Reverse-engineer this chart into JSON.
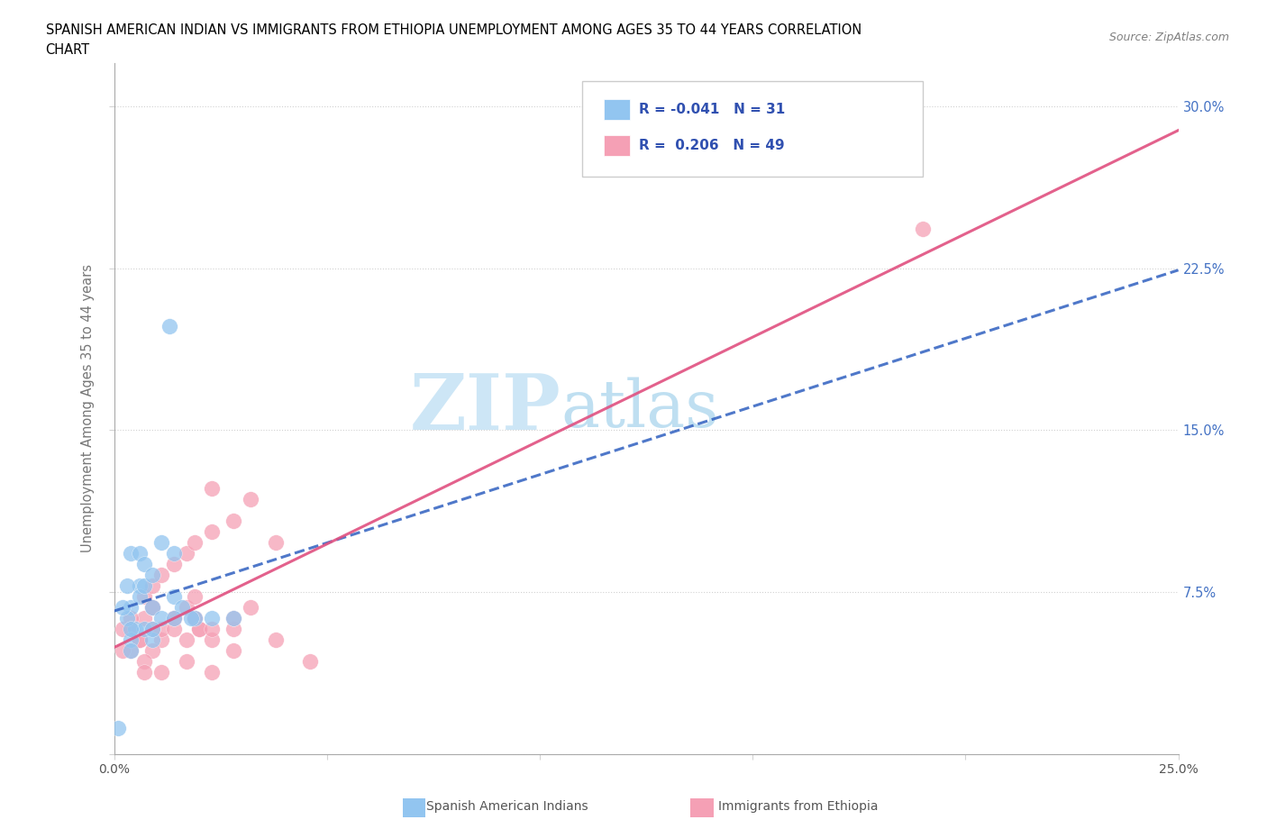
{
  "title_line1": "SPANISH AMERICAN INDIAN VS IMMIGRANTS FROM ETHIOPIA UNEMPLOYMENT AMONG AGES 35 TO 44 YEARS CORRELATION",
  "title_line2": "CHART",
  "source_text": "Source: ZipAtlas.com",
  "ylabel": "Unemployment Among Ages 35 to 44 years",
  "xlim": [
    0.0,
    0.25
  ],
  "ylim": [
    0.0,
    0.32
  ],
  "xticks": [
    0.0,
    0.05,
    0.1,
    0.15,
    0.2,
    0.25
  ],
  "xticklabels": [
    "0.0%",
    "",
    "",
    "",
    "",
    "25.0%"
  ],
  "yticks": [
    0.0,
    0.075,
    0.15,
    0.225,
    0.3
  ],
  "yticklabels": [
    "",
    "7.5%",
    "15.0%",
    "22.5%",
    "30.0%"
  ],
  "legend_label1": "Spanish American Indians",
  "legend_label2": "Immigrants from Ethiopia",
  "R1": -0.041,
  "N1": 31,
  "R2": 0.206,
  "N2": 49,
  "color_blue": "#92C5F0",
  "color_pink": "#F5A0B5",
  "line_blue": "#3060C0",
  "line_pink": "#E05080",
  "watermark_color": "#D8EEF8",
  "blue_points_x": [
    0.004,
    0.006,
    0.005,
    0.003,
    0.004,
    0.006,
    0.007,
    0.009,
    0.011,
    0.009,
    0.007,
    0.004,
    0.003,
    0.004,
    0.006,
    0.011,
    0.014,
    0.007,
    0.009,
    0.014,
    0.019,
    0.023,
    0.013,
    0.016,
    0.018,
    0.028,
    0.004,
    0.002,
    0.009,
    0.014,
    0.001
  ],
  "blue_points_y": [
    0.068,
    0.078,
    0.058,
    0.063,
    0.053,
    0.073,
    0.078,
    0.068,
    0.063,
    0.053,
    0.058,
    0.048,
    0.078,
    0.093,
    0.093,
    0.098,
    0.093,
    0.088,
    0.083,
    0.073,
    0.063,
    0.063,
    0.198,
    0.068,
    0.063,
    0.063,
    0.058,
    0.068,
    0.058,
    0.063,
    0.012
  ],
  "pink_points_x": [
    0.004,
    0.007,
    0.009,
    0.011,
    0.002,
    0.004,
    0.006,
    0.009,
    0.011,
    0.014,
    0.017,
    0.019,
    0.007,
    0.009,
    0.011,
    0.014,
    0.017,
    0.019,
    0.023,
    0.028,
    0.032,
    0.038,
    0.023,
    0.014,
    0.017,
    0.019,
    0.02,
    0.023,
    0.028,
    0.009,
    0.011,
    0.004,
    0.006,
    0.007,
    0.002,
    0.038,
    0.046,
    0.014,
    0.019,
    0.023,
    0.028,
    0.032,
    0.007,
    0.009,
    0.017,
    0.02,
    0.19,
    0.023,
    0.028
  ],
  "pink_points_y": [
    0.058,
    0.063,
    0.068,
    0.053,
    0.058,
    0.063,
    0.053,
    0.048,
    0.058,
    0.063,
    0.068,
    0.063,
    0.073,
    0.078,
    0.083,
    0.088,
    0.093,
    0.098,
    0.103,
    0.108,
    0.118,
    0.098,
    0.123,
    0.058,
    0.043,
    0.063,
    0.058,
    0.053,
    0.048,
    0.068,
    0.038,
    0.048,
    0.053,
    0.043,
    0.048,
    0.053,
    0.043,
    0.063,
    0.073,
    0.038,
    0.058,
    0.068,
    0.038,
    0.058,
    0.053,
    0.058,
    0.243,
    0.058,
    0.063
  ]
}
